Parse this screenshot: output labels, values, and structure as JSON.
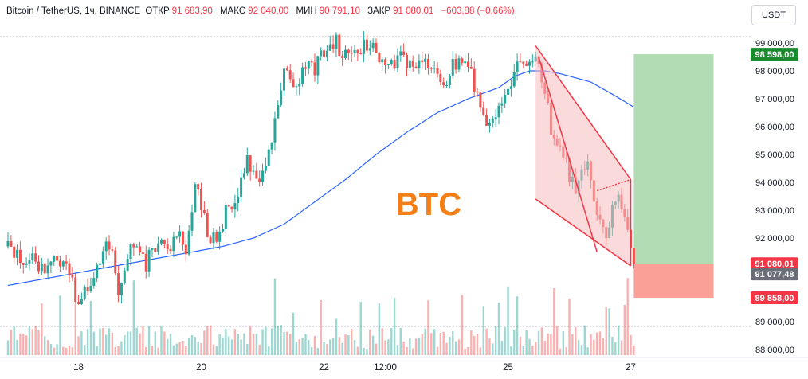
{
  "header": {
    "symbol": "Bitcoin / TetherUS, 1ч, BINANCE",
    "open_label": "ОТКР",
    "open": "91 683,90",
    "high_label": "МАКС",
    "high": "92 040,00",
    "low_label": "МИН",
    "low": "90 791,10",
    "close_label": "ЗАКР",
    "close": "91 080,01",
    "change": "−603,88 (−0,66%)"
  },
  "currency_button": "USDT",
  "watermark": "BTC",
  "colors": {
    "up": "#26a69a",
    "down": "#ef5350",
    "ma": "#2962ff",
    "pattern": "#f23645",
    "pattern_fill": "#f8bcc0",
    "profit": "#a5d6a7",
    "loss": "#f9968b",
    "watermark": "#f57f17",
    "price_tag_close": "#f23645",
    "price_tag_grey": "#6a6d78",
    "price_tag_target": "#1b8a2e",
    "price_tag_stop": "#f23645"
  },
  "chart_data": {
    "type": "candlestick",
    "price_axis": {
      "range": [
        87800,
        99600
      ],
      "ticks": [
        {
          "value": 99000,
          "label": "99 000,00"
        },
        {
          "value": 98000,
          "label": "98 000,00"
        },
        {
          "value": 97000,
          "label": "97 000,00"
        },
        {
          "value": 96000,
          "label": "96 000,00"
        },
        {
          "value": 95000,
          "label": "95 000,00"
        },
        {
          "value": 94000,
          "label": "94 000,00"
        },
        {
          "value": 93000,
          "label": "93 000,00"
        },
        {
          "value": 92000,
          "label": "92 000,00"
        },
        {
          "value": 89000,
          "label": "89 000,00"
        },
        {
          "value": 88000,
          "label": "88 000,00"
        }
      ]
    },
    "time_axis": {
      "labels": [
        {
          "text": "18",
          "index": 23
        },
        {
          "text": "20",
          "index": 63
        },
        {
          "text": "22",
          "index": 103
        },
        {
          "text": "12:00",
          "index": 123
        },
        {
          "text": "25",
          "index": 163
        },
        {
          "text": "27",
          "index": 203
        }
      ]
    },
    "price_path": [
      [
        0,
        91700
      ],
      [
        5,
        91000
      ],
      [
        8,
        91200
      ],
      [
        12,
        90800
      ],
      [
        16,
        91300
      ],
      [
        20,
        90700
      ],
      [
        23,
        89500
      ],
      [
        27,
        90500
      ],
      [
        30,
        91300
      ],
      [
        33,
        91800
      ],
      [
        36,
        90200
      ],
      [
        39,
        91500
      ],
      [
        42,
        91900
      ],
      [
        45,
        91100
      ],
      [
        48,
        91800
      ],
      [
        52,
        91600
      ],
      [
        55,
        92300
      ],
      [
        58,
        91500
      ],
      [
        61,
        93700
      ],
      [
        63,
        93300
      ],
      [
        65,
        92200
      ],
      [
        68,
        91900
      ],
      [
        71,
        92900
      ],
      [
        75,
        93600
      ],
      [
        78,
        94700
      ],
      [
        81,
        94100
      ],
      [
        84,
        94600
      ],
      [
        87,
        96200
      ],
      [
        90,
        97900
      ],
      [
        94,
        97600
      ],
      [
        97,
        98200
      ],
      [
        100,
        98100
      ],
      [
        102,
        98600
      ],
      [
        105,
        98700
      ],
      [
        107,
        99000
      ],
      [
        110,
        98500
      ],
      [
        113,
        98700
      ],
      [
        116,
        98900
      ],
      [
        118,
        98800
      ],
      [
        121,
        98600
      ],
      [
        125,
        98300
      ],
      [
        128,
        98500
      ],
      [
        132,
        98100
      ],
      [
        135,
        98600
      ],
      [
        137,
        98300
      ],
      [
        140,
        97800
      ],
      [
        143,
        97600
      ],
      [
        145,
        98200
      ],
      [
        148,
        98400
      ],
      [
        151,
        97800
      ],
      [
        153,
        97100
      ],
      [
        156,
        96300
      ],
      [
        158,
        96000
      ],
      [
        160,
        96600
      ],
      [
        163,
        97400
      ],
      [
        165,
        97900
      ],
      [
        167,
        98200
      ],
      [
        170,
        98500
      ],
      [
        172,
        98700
      ],
      [
        173,
        98400
      ],
      [
        175,
        97300
      ],
      [
        177,
        95900
      ],
      [
        179,
        95300
      ],
      [
        181,
        95000
      ],
      [
        183,
        94300
      ],
      [
        185,
        93800
      ],
      [
        187,
        94500
      ],
      [
        189,
        94700
      ],
      [
        191,
        93500
      ],
      [
        193,
        92700
      ],
      [
        195,
        91800
      ],
      [
        197,
        93300
      ],
      [
        199,
        93700
      ],
      [
        201,
        92500
      ],
      [
        203,
        91700
      ],
      [
        204,
        91080
      ]
    ],
    "moving_average": [
      [
        0,
        90300
      ],
      [
        20,
        90700
      ],
      [
        40,
        91100
      ],
      [
        60,
        91500
      ],
      [
        70,
        91700
      ],
      [
        80,
        92000
      ],
      [
        90,
        92500
      ],
      [
        100,
        93300
      ],
      [
        110,
        94100
      ],
      [
        120,
        95000
      ],
      [
        130,
        95800
      ],
      [
        140,
        96500
      ],
      [
        150,
        97000
      ],
      [
        160,
        97400
      ],
      [
        165,
        97800
      ],
      [
        170,
        98000
      ],
      [
        175,
        98000
      ],
      [
        180,
        97900
      ],
      [
        190,
        97600
      ],
      [
        198,
        97100
      ],
      [
        204,
        96700
      ]
    ],
    "falling_wedge": {
      "upper": [
        [
          172,
          98900
        ],
        [
          203,
          94100
        ]
      ],
      "lower": [
        [
          172,
          93400
        ],
        [
          203,
          91000
        ]
      ],
      "inner_line": [
        [
          173,
          98500
        ],
        [
          192,
          91500
        ]
      ],
      "top_right": [
        [
          192,
          93700
        ],
        [
          203,
          94100
        ]
      ]
    },
    "position": {
      "entry": 91080.01,
      "target": 98598.0,
      "stop": 89858.0,
      "from_index": 204,
      "to_index": 230
    },
    "price_tags": [
      {
        "label": "98 598,00",
        "value": 98598,
        "kind": "target"
      },
      {
        "label": "91 080,01",
        "value": 91080.01,
        "kind": "close"
      },
      {
        "label": "91 077,48",
        "value": 90710,
        "kind": "grey"
      },
      {
        "label": "89 858,00",
        "value": 89858,
        "kind": "stop"
      }
    ],
    "volume": {
      "count": 205,
      "relative_max": 1.0
    }
  }
}
